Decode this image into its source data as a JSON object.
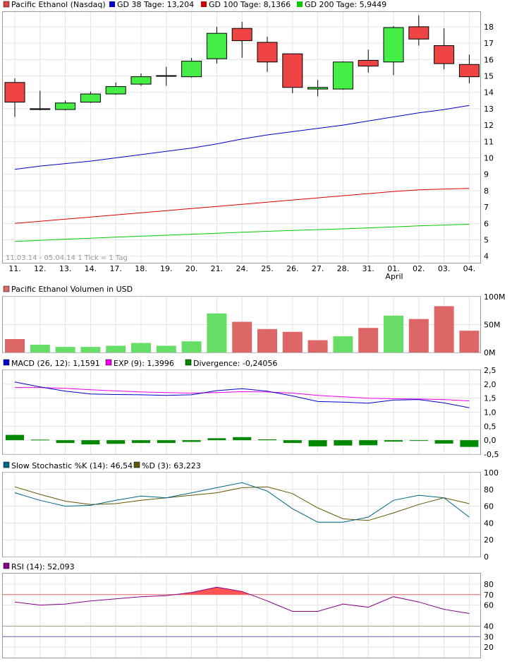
{
  "chart_data": {
    "type": "candlestick",
    "x_labels": [
      "11.",
      "12.",
      "13.",
      "14.",
      "17.",
      "18.",
      "19.",
      "20.",
      "21.",
      "24.",
      "25.",
      "26.",
      "27.",
      "28.",
      "31.",
      "01.",
      "02.",
      "03.",
      "04."
    ],
    "month_label": "April",
    "range_note": "11.03.14 - 05.04.14   1 Tick = 1 Tag",
    "price": {
      "legend": [
        {
          "label": "Pacific Ethanol (Nasdaq)",
          "color": "#000000"
        },
        {
          "label": "GD 38 Tage: 13,204",
          "color": "#0000cc"
        },
        {
          "label": "GD 100 Tage: 8,1366",
          "color": "#cc0000"
        },
        {
          "label": "GD 200 Tage: 5,9449",
          "color": "#00cc00"
        }
      ],
      "y_ticks": [
        4,
        5,
        6,
        7,
        8,
        9,
        10,
        11,
        12,
        13,
        14,
        15,
        16,
        17,
        18
      ],
      "ylim": [
        3.6,
        18.9
      ],
      "up_color": "#44ee44",
      "down_color": "#ee4444",
      "candles": [
        {
          "o": 14.6,
          "h": 14.85,
          "c": 13.4,
          "l": 12.5
        },
        {
          "o": 13.0,
          "h": 14.1,
          "c": 12.95,
          "l": 12.9
        },
        {
          "o": 12.95,
          "h": 13.5,
          "c": 13.35,
          "l": 12.9
        },
        {
          "o": 13.4,
          "h": 14.05,
          "c": 13.9,
          "l": 13.35
        },
        {
          "o": 13.9,
          "h": 14.6,
          "c": 14.35,
          "l": 13.85
        },
        {
          "o": 14.5,
          "h": 15.15,
          "c": 14.95,
          "l": 14.4
        },
        {
          "o": 15.0,
          "h": 15.55,
          "c": 15.02,
          "l": 14.4
        },
        {
          "o": 14.95,
          "h": 16.1,
          "c": 15.9,
          "l": 14.9
        },
        {
          "o": 16.05,
          "h": 18.0,
          "c": 17.6,
          "l": 15.75
        },
        {
          "o": 17.9,
          "h": 18.3,
          "c": 17.15,
          "l": 16.1
        },
        {
          "o": 17.05,
          "h": 17.4,
          "c": 15.85,
          "l": 15.25
        },
        {
          "o": 16.35,
          "h": 16.35,
          "c": 14.3,
          "l": 13.95
        },
        {
          "o": 14.2,
          "h": 14.75,
          "c": 14.3,
          "l": 13.75
        },
        {
          "o": 14.2,
          "h": 15.9,
          "c": 15.85,
          "l": 14.15
        },
        {
          "o": 15.95,
          "h": 16.6,
          "c": 15.6,
          "l": 15.2
        },
        {
          "o": 15.85,
          "h": 18.05,
          "c": 17.95,
          "l": 15.05
        },
        {
          "o": 18.0,
          "h": 18.7,
          "c": 17.25,
          "l": 16.85
        },
        {
          "o": 16.85,
          "h": 17.9,
          "c": 15.75,
          "l": 15.4
        },
        {
          "o": 15.7,
          "h": 16.3,
          "c": 14.95,
          "l": 14.55
        }
      ],
      "ma38": [
        9.3,
        9.5,
        9.65,
        9.8,
        10.0,
        10.2,
        10.4,
        10.6,
        10.85,
        11.15,
        11.4,
        11.6,
        11.8,
        12.0,
        12.25,
        12.5,
        12.75,
        12.95,
        13.2
      ],
      "ma100": [
        6.0,
        6.13,
        6.26,
        6.39,
        6.52,
        6.65,
        6.78,
        6.91,
        7.04,
        7.17,
        7.3,
        7.43,
        7.56,
        7.69,
        7.82,
        7.95,
        8.05,
        8.1,
        8.14
      ],
      "ma200": [
        4.9,
        4.97,
        5.04,
        5.1,
        5.16,
        5.22,
        5.28,
        5.34,
        5.4,
        5.46,
        5.52,
        5.57,
        5.62,
        5.67,
        5.73,
        5.79,
        5.85,
        5.9,
        5.95
      ]
    },
    "volume": {
      "legend": "Pacific Ethanol Volumen in USD",
      "legend_color": "#dd6666",
      "y_ticks": [
        "0M",
        "50M",
        "100M"
      ],
      "ylim": [
        0,
        100
      ],
      "values": [
        24,
        14,
        10,
        10,
        12,
        17,
        12,
        20,
        70,
        55,
        42,
        37,
        22,
        29,
        44,
        66,
        60,
        83,
        39
      ],
      "direction": [
        "down",
        "up",
        "up",
        "up",
        "up",
        "up",
        "up",
        "up",
        "up",
        "down",
        "down",
        "down",
        "down",
        "up",
        "down",
        "up",
        "down",
        "down",
        "down"
      ],
      "up_color": "#66dd66",
      "down_color": "#dd6666"
    },
    "macd": {
      "legend": [
        {
          "label": "MACD (26, 12): 1,1591",
          "color": "#0000cc"
        },
        {
          "label": "EXP (9): 1,3996",
          "color": "#ee00ee"
        },
        {
          "label": "Divergence: -0,24056",
          "color": "#008800"
        }
      ],
      "y_ticks": [
        "-0,5",
        "0,0",
        "0,5",
        "1,0",
        "1,5",
        "2,0",
        "2,5"
      ],
      "ylim": [
        -0.5,
        2.5
      ],
      "macd": [
        2.08,
        1.9,
        1.75,
        1.65,
        1.63,
        1.62,
        1.6,
        1.62,
        1.77,
        1.84,
        1.75,
        1.58,
        1.38,
        1.36,
        1.32,
        1.43,
        1.45,
        1.33,
        1.16
      ],
      "exp": [
        1.88,
        1.88,
        1.85,
        1.8,
        1.76,
        1.72,
        1.7,
        1.68,
        1.7,
        1.73,
        1.72,
        1.68,
        1.6,
        1.55,
        1.5,
        1.48,
        1.47,
        1.45,
        1.4
      ],
      "divergence": [
        0.19,
        0.02,
        -0.1,
        -0.15,
        -0.13,
        -0.1,
        -0.1,
        -0.06,
        0.07,
        0.11,
        0.03,
        -0.1,
        -0.22,
        -0.19,
        -0.18,
        -0.05,
        -0.02,
        -0.12,
        -0.24
      ]
    },
    "stochastic": {
      "legend": [
        {
          "label": "Slow Stochastic %K (14): 46,54",
          "color": "#006688"
        },
        {
          "label": "%D (3): 63,223",
          "color": "#665500"
        }
      ],
      "y_ticks": [
        0,
        20,
        40,
        60,
        80,
        100
      ],
      "ylim": [
        0,
        100
      ],
      "k": [
        76,
        67,
        60,
        61,
        67,
        72,
        70,
        76,
        82,
        88,
        78,
        57,
        41,
        41,
        47,
        67,
        73,
        70,
        47
      ],
      "d": [
        83,
        74,
        66,
        62,
        63,
        67,
        70,
        73,
        76,
        82,
        83,
        75,
        58,
        45,
        43,
        52,
        62,
        70,
        63
      ]
    },
    "rsi": {
      "legend": "RSI (14): 52,093",
      "legend_color": "#880088",
      "y_ticks": [
        20,
        30,
        40,
        60,
        70,
        80
      ],
      "ylim": [
        10,
        90
      ],
      "upper": 70,
      "lower": 30,
      "mid": 40,
      "values": [
        63,
        60,
        61,
        64,
        66,
        68,
        69,
        72,
        77,
        73,
        64,
        54,
        54,
        61,
        58,
        68,
        63,
        56,
        52
      ]
    }
  }
}
